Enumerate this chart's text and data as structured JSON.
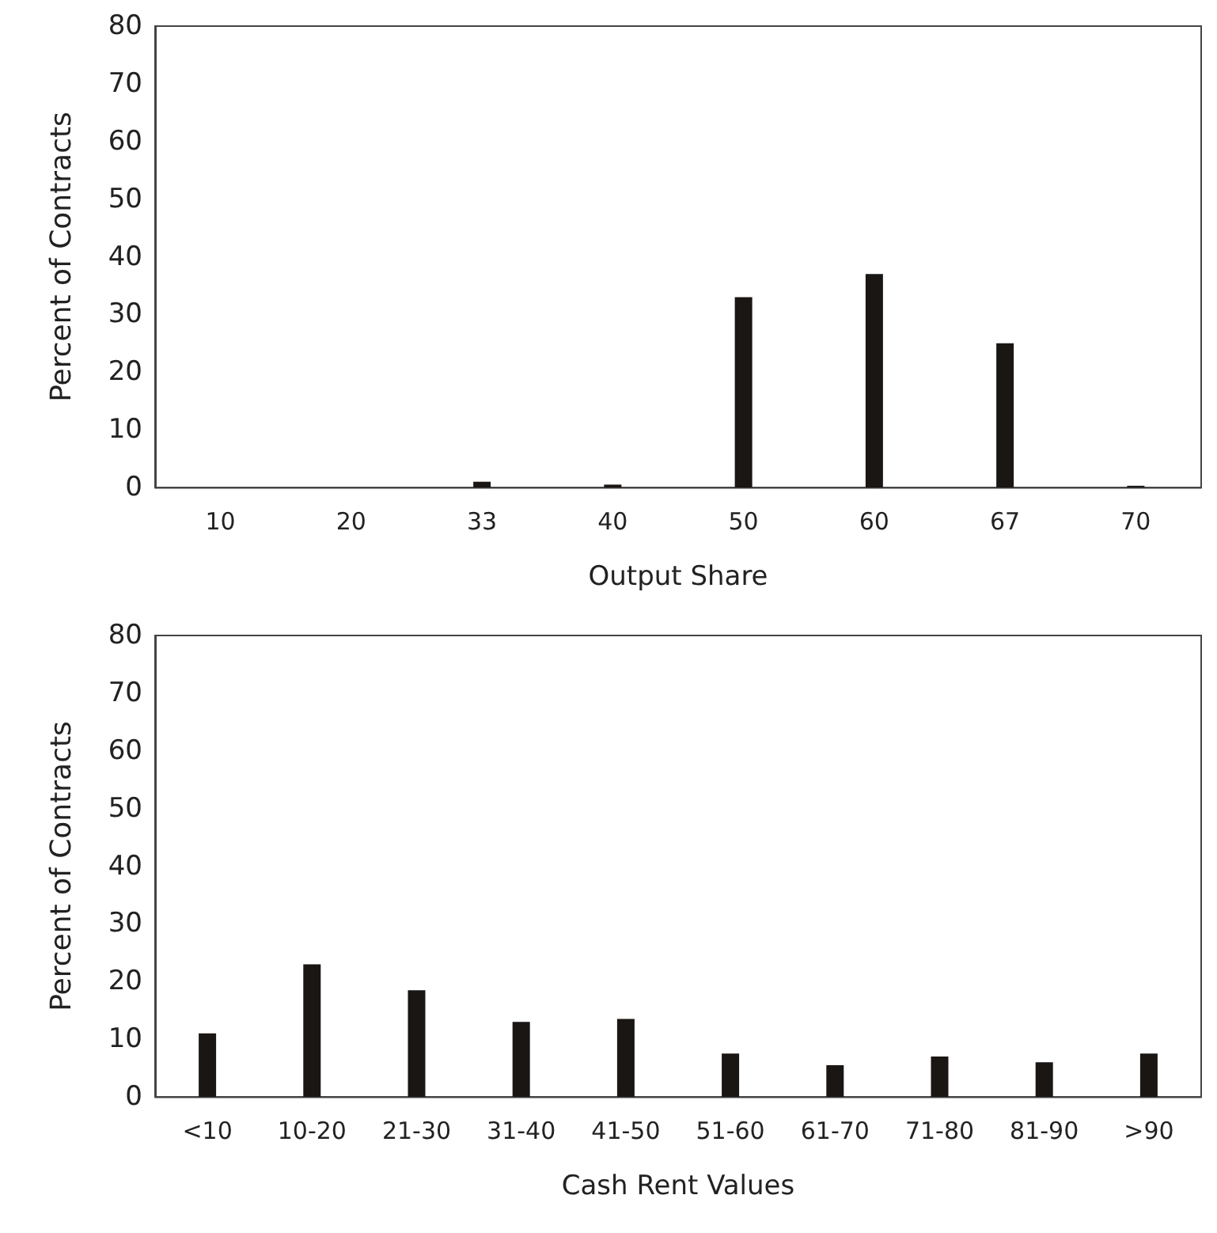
{
  "chart_data": [
    {
      "type": "bar",
      "xlabel": "Output Share",
      "ylabel": "Percent of Contracts",
      "categories": [
        "10",
        "20",
        "33",
        "40",
        "50",
        "60",
        "67",
        "70"
      ],
      "values": [
        0,
        0,
        1,
        0.5,
        33,
        37,
        25,
        0.3
      ],
      "color": "#1a1614",
      "ylim": [
        0,
        80
      ],
      "yticks": [
        0,
        10,
        20,
        30,
        40,
        50,
        60,
        70,
        80
      ],
      "grid": false
    },
    {
      "type": "bar",
      "xlabel": "Cash Rent Values",
      "ylabel": "Percent of Contracts",
      "categories": [
        "<10",
        "10-20",
        "21-30",
        "31-40",
        "41-50",
        "51-60",
        "61-70",
        "71-80",
        "81-90",
        ">90"
      ],
      "values": [
        11,
        23,
        18.5,
        13,
        13.5,
        7.5,
        5.5,
        7,
        6,
        7.5
      ],
      "color": "#1a1614",
      "ylim": [
        0,
        80
      ],
      "yticks": [
        0,
        10,
        20,
        30,
        40,
        50,
        60,
        70,
        80
      ],
      "grid": false
    }
  ]
}
